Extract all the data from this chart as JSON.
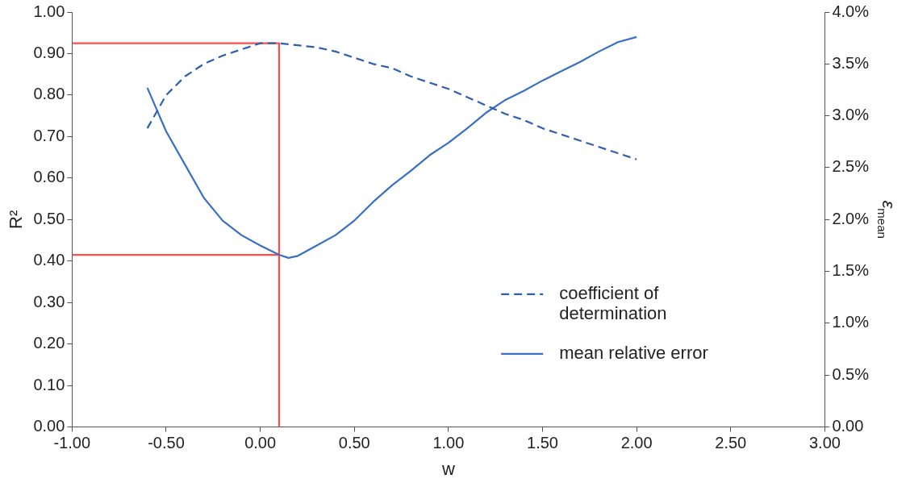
{
  "chart_data": {
    "type": "line",
    "xlabel": "w",
    "ylabel": "R²",
    "y2label": "ε$_{mean}$",
    "xlim": [
      -1,
      3
    ],
    "xticks": [
      {
        "value": -1,
        "label": "-1.00"
      },
      {
        "value": -0.5,
        "label": "-0.50"
      },
      {
        "value": 0,
        "label": "0.00"
      },
      {
        "value": 0.5,
        "label": "0.50"
      },
      {
        "value": 1,
        "label": "1.00"
      },
      {
        "value": 1.5,
        "label": "1.50"
      },
      {
        "value": 2,
        "label": "2.00"
      },
      {
        "value": 2.5,
        "label": "2.50"
      },
      {
        "value": 3,
        "label": "3.00"
      }
    ],
    "ylim": [
      0,
      1
    ],
    "yticks": [
      {
        "value": 0,
        "label": "0.00"
      },
      {
        "value": 0.1,
        "label": "0.10"
      },
      {
        "value": 0.2,
        "label": "0.20"
      },
      {
        "value": 0.3,
        "label": "0.30"
      },
      {
        "value": 0.4,
        "label": "0.40"
      },
      {
        "value": 0.5,
        "label": "0.50"
      },
      {
        "value": 0.6,
        "label": "0.60"
      },
      {
        "value": 0.7,
        "label": "0.70"
      },
      {
        "value": 0.8,
        "label": "0.80"
      },
      {
        "value": 0.9,
        "label": "0.90"
      },
      {
        "value": 1,
        "label": "1.00"
      }
    ],
    "y2lim": [
      0,
      4
    ],
    "y2ticks": [
      {
        "value": 0,
        "label": "0.00"
      },
      {
        "value": 0.5,
        "label": "0.5%"
      },
      {
        "value": 1,
        "label": "1.0%"
      },
      {
        "value": 1.5,
        "label": "1.5%"
      },
      {
        "value": 2,
        "label": "2.0%"
      },
      {
        "value": 2.5,
        "label": "2.5%"
      },
      {
        "value": 3,
        "label": "3.0%"
      },
      {
        "value": 3.5,
        "label": "3.5%"
      },
      {
        "value": 4,
        "label": "4.0%"
      }
    ],
    "grid": false,
    "legend": "right",
    "marker": "none",
    "series": [
      {
        "name": "coefficient of determination",
        "color": "#2e5fb0",
        "line_style": "dashed",
        "x": [
          -0.6,
          -0.5,
          -0.4,
          -0.3,
          -0.2,
          -0.1,
          0,
          0.1,
          0.2,
          0.3,
          0.4,
          0.5,
          0.6,
          0.7,
          0.8,
          0.9,
          1,
          1.1,
          1.2,
          1.3,
          1.4,
          1.5,
          1.6,
          1.7,
          1.8,
          1.9,
          2
        ],
        "values": [
          0.72,
          0.8,
          0.845,
          0.875,
          0.895,
          0.91,
          0.925,
          0.925,
          0.92,
          0.915,
          0.905,
          0.89,
          0.875,
          0.865,
          0.845,
          0.83,
          0.815,
          0.795,
          0.775,
          0.755,
          0.74,
          0.72,
          0.705,
          0.69,
          0.675,
          0.66,
          0.645
        ]
      },
      {
        "name": "mean relative error",
        "color": "#3a6fc4",
        "line_style": "solid",
        "axis": "y2",
        "x": [
          -0.6,
          -0.5,
          -0.4,
          -0.3,
          -0.2,
          -0.1,
          0,
          0.1,
          0.15,
          0.2,
          0.3,
          0.4,
          0.5,
          0.6,
          0.7,
          0.8,
          0.9,
          1,
          1.1,
          1.2,
          1.3,
          1.4,
          1.5,
          1.6,
          1.7,
          1.8,
          1.9,
          2
        ],
        "values": [
          3.27,
          2.85,
          2.53,
          2.21,
          1.99,
          1.85,
          1.75,
          1.66,
          1.63,
          1.65,
          1.75,
          1.85,
          1.99,
          2.17,
          2.33,
          2.47,
          2.62,
          2.74,
          2.88,
          3.03,
          3.15,
          3.24,
          3.34,
          3.43,
          3.52,
          3.62,
          3.71,
          3.76
        ]
      },
      {
        "color": "#ff4d4d",
        "line_style": "solid",
        "x": [
          -1,
          0.1,
          0.1
        ],
        "values": [
          0.925,
          0.925,
          0
        ]
      },
      {
        "color": "#ff4d4d",
        "line_style": "solid",
        "x": [
          -1,
          0.1
        ],
        "values": [
          0.415,
          0.415
        ]
      }
    ]
  }
}
